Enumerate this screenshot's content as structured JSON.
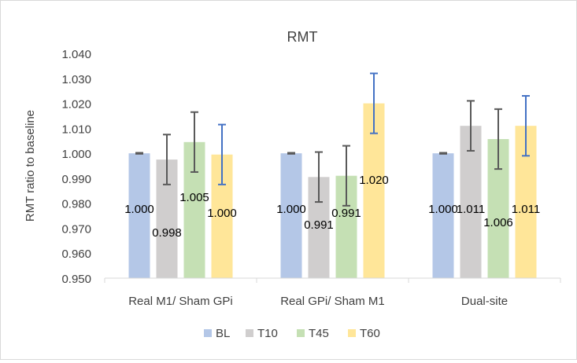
{
  "chart_data": {
    "type": "bar",
    "title": "RMT",
    "xlabel": "",
    "ylabel": "RMT ratio to baseline",
    "ylim": [
      0.95,
      1.04
    ],
    "yticks": [
      0.95,
      0.96,
      0.97,
      0.98,
      0.99,
      1.0,
      1.01,
      1.02,
      1.03,
      1.04
    ],
    "ytick_labels": [
      "0.950",
      "0.960",
      "0.970",
      "0.980",
      "0.990",
      "1.000",
      "1.010",
      "1.020",
      "1.030",
      "1.040"
    ],
    "grid": false,
    "legend_position": "bottom",
    "categories": [
      "Real M1/ Sham GPi",
      "Real GPi/ Sham M1",
      "Dual-site"
    ],
    "series": [
      {
        "name": "BL",
        "color": "#b4c7e7",
        "error_color": "#595959",
        "values": [
          1.0,
          1.0,
          1.0
        ],
        "errors": [
          0.0002,
          0.0002,
          0.0002
        ],
        "labels": [
          "1.000",
          "1.000",
          "1.000"
        ]
      },
      {
        "name": "T10",
        "color": "#d0cece",
        "error_color": "#595959",
        "values": [
          0.9975,
          0.9905,
          1.011
        ],
        "errors": [
          0.01,
          0.01,
          0.01
        ],
        "labels": [
          "0.998",
          "0.991",
          "1.011"
        ]
      },
      {
        "name": "T45",
        "color": "#c5e0b4",
        "error_color": "#595959",
        "values": [
          1.0045,
          0.991,
          1.0057
        ],
        "errors": [
          0.012,
          0.012,
          0.012
        ],
        "labels": [
          "1.005",
          "0.991",
          "1.006"
        ]
      },
      {
        "name": "T60",
        "color": "#ffe699",
        "error_color": "#4472c4",
        "values": [
          0.9995,
          1.02,
          1.011
        ],
        "errors": [
          0.012,
          0.012,
          0.012
        ],
        "labels": [
          "1.000",
          "1.020",
          "1.011"
        ]
      }
    ]
  }
}
